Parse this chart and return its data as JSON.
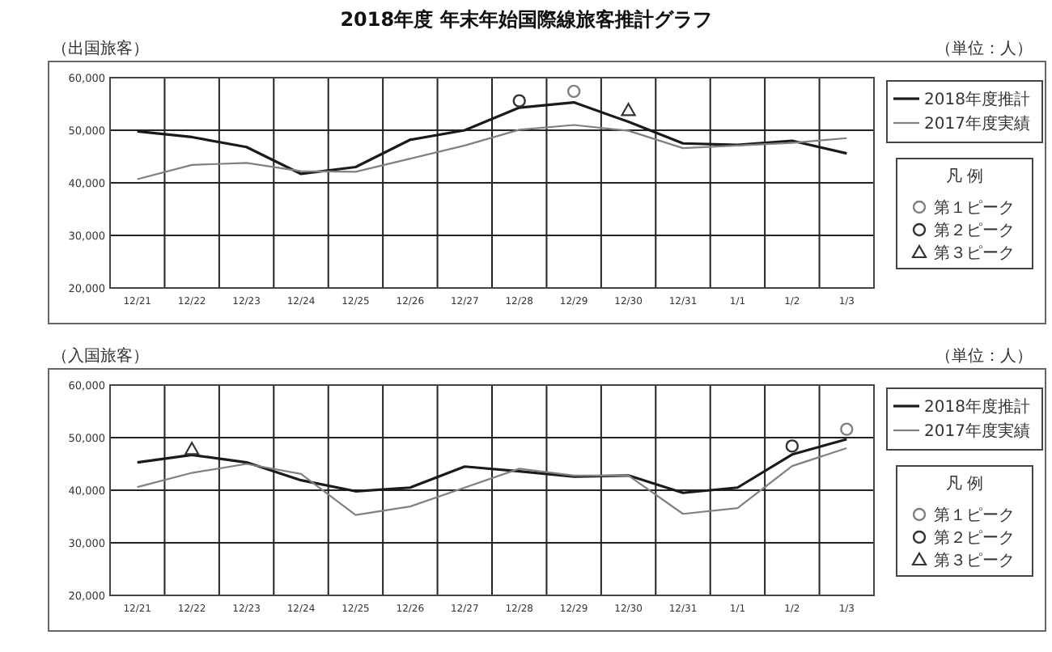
{
  "chart_data": [
    {
      "type": "line",
      "title": "2018年度 年末年始国際線旅客推計グラフ",
      "subtitle": "（出国旅客）",
      "annotations": [
        "（単位：人）"
      ],
      "categories": [
        "12/21",
        "12/22",
        "12/23",
        "12/24",
        "12/25",
        "12/26",
        "12/27",
        "12/28",
        "12/29",
        "12/30",
        "12/31",
        "1/1",
        "1/2",
        "1/3"
      ],
      "series": [
        {
          "name": "2018年度推計",
          "color": "#1a1a1a",
          "values": [
            49800,
            48700,
            46800,
            41700,
            43000,
            48200,
            50000,
            54300,
            55300,
            51600,
            47500,
            47200,
            48000,
            45600
          ]
        },
        {
          "name": "2017年度実績",
          "color": "#808080",
          "values": [
            40700,
            43400,
            43800,
            42200,
            42100,
            44600,
            47100,
            50100,
            51000,
            49900,
            46600,
            47100,
            47600,
            48500
          ]
        },
        {
          "name": "第１ピーク",
          "type": "scatter",
          "marker": "circle",
          "color": "#808080",
          "x": [
            "12/29"
          ],
          "values": [
            57400
          ]
        },
        {
          "name": "第２ピーク",
          "type": "scatter",
          "marker": "circle",
          "color": "#333333",
          "x": [
            "12/28"
          ],
          "values": [
            55600
          ]
        },
        {
          "name": "第３ピーク",
          "type": "scatter",
          "marker": "triangle",
          "color": "#333333",
          "x": [
            "12/30"
          ],
          "values": [
            53800
          ]
        }
      ],
      "legend_title": "凡 例",
      "legend": "right",
      "grid": true,
      "ylim": [
        20000,
        60000
      ],
      "yticks": [
        {
          "value": 20000,
          "label": "20,000"
        },
        {
          "value": 30000,
          "label": "30,000"
        },
        {
          "value": 40000,
          "label": "40,000"
        },
        {
          "value": 50000,
          "label": "50,000"
        },
        {
          "value": 60000,
          "label": "60,000"
        }
      ]
    },
    {
      "type": "line",
      "subtitle": "（入国旅客）",
      "annotations": [
        "（単位：人）"
      ],
      "categories": [
        "12/21",
        "12/22",
        "12/23",
        "12/24",
        "12/25",
        "12/26",
        "12/27",
        "12/28",
        "12/29",
        "12/30",
        "12/31",
        "1/1",
        "1/2",
        "1/3"
      ],
      "series": [
        {
          "name": "2018年度推計",
          "color": "#1a1a1a",
          "values": [
            45300,
            46700,
            45300,
            41900,
            39800,
            40500,
            44500,
            43600,
            42600,
            42800,
            39500,
            40500,
            46800,
            49700
          ]
        },
        {
          "name": "2017年度実績",
          "color": "#808080",
          "values": [
            40600,
            43300,
            45000,
            43100,
            35300,
            36900,
            40500,
            44100,
            42800,
            42800,
            35500,
            36600,
            44600,
            48000
          ]
        },
        {
          "name": "第１ピーク",
          "type": "scatter",
          "marker": "circle",
          "color": "#808080",
          "x": [
            "1/3"
          ],
          "values": [
            51600
          ]
        },
        {
          "name": "第２ピーク",
          "type": "scatter",
          "marker": "circle",
          "color": "#333333",
          "x": [
            "1/2"
          ],
          "values": [
            48400
          ]
        },
        {
          "name": "第３ピーク",
          "type": "scatter",
          "marker": "triangle",
          "color": "#333333",
          "x": [
            "12/22"
          ],
          "values": [
            47800
          ]
        }
      ],
      "legend_title": "凡 例",
      "legend": "right",
      "grid": true,
      "ylim": [
        20000,
        60000
      ],
      "yticks": [
        {
          "value": 20000,
          "label": "20,000"
        },
        {
          "value": 30000,
          "label": "30,000"
        },
        {
          "value": 40000,
          "label": "40,000"
        },
        {
          "value": 50000,
          "label": "50,000"
        },
        {
          "value": 60000,
          "label": "60,000"
        }
      ]
    }
  ]
}
